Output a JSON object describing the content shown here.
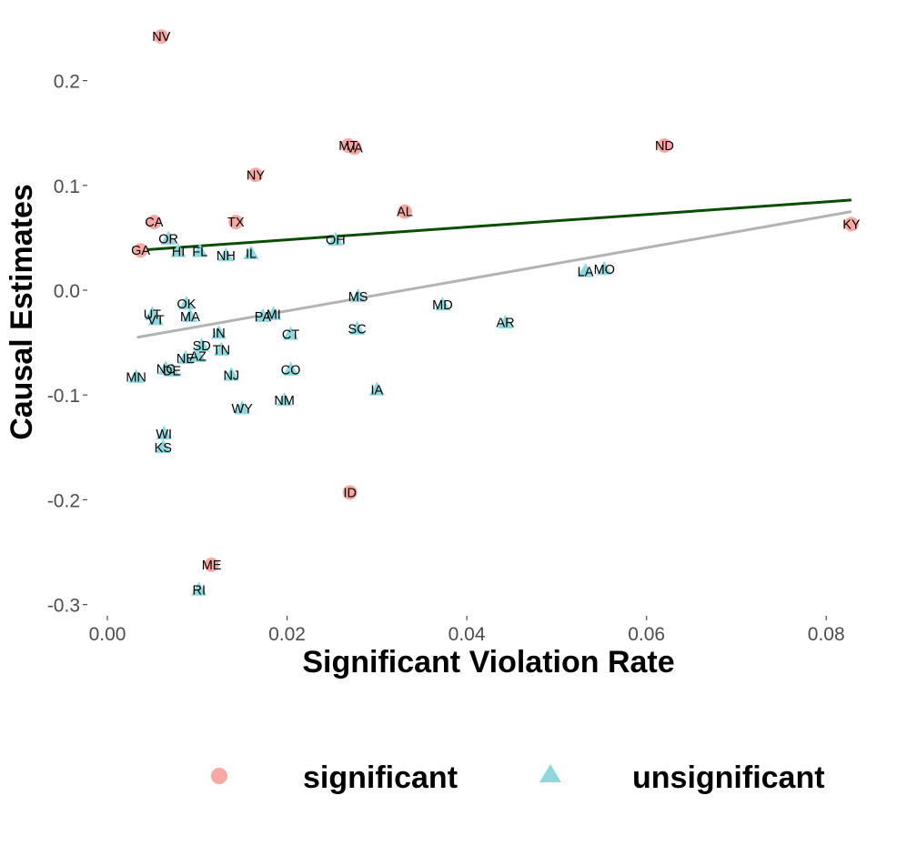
{
  "chart_data": {
    "type": "scatter",
    "xlabel": "Significant Violation Rate",
    "ylabel": "Causal Estimates",
    "xlim": [
      0.0,
      0.083
    ],
    "ylim": [
      -0.3,
      0.24
    ],
    "x_ticks": [
      0.0,
      0.02,
      0.04,
      0.06,
      0.08
    ],
    "x_tick_labels": [
      "0.00",
      "0.02",
      "0.04",
      "0.06",
      "0.08"
    ],
    "y_ticks": [
      -0.3,
      -0.2,
      -0.1,
      0.0,
      0.1,
      0.2
    ],
    "y_tick_labels": [
      "-0.3",
      "-0.2",
      "-0.1",
      "0.0",
      "0.1",
      "0.2"
    ],
    "grid": false,
    "legend_position": "bottom",
    "colors": {
      "significant": "#F8A9A3",
      "unsignificant": "#8ED8DE",
      "fit_significant": "#0A4D00",
      "fit_all": "#B3B3B3"
    },
    "legend": [
      {
        "key": "significant",
        "label": "significant",
        "shape": "circle"
      },
      {
        "key": "unsignificant",
        "label": "unsignificant",
        "shape": "triangle"
      }
    ],
    "fit_lines": [
      {
        "key": "fit_significant",
        "x": [
          0.0033,
          0.0828
        ],
        "y": [
          0.038,
          0.086
        ]
      },
      {
        "key": "fit_all",
        "x": [
          0.0033,
          0.0828
        ],
        "y": [
          -0.045,
          0.075
        ]
      }
    ],
    "series": [
      {
        "name": "significant",
        "points": [
          {
            "label": "NV",
            "x": 0.006,
            "y": 0.242
          },
          {
            "label": "MT",
            "x": 0.0268,
            "y": 0.138
          },
          {
            "label": "VA",
            "x": 0.0275,
            "y": 0.136
          },
          {
            "label": "ND",
            "x": 0.062,
            "y": 0.138
          },
          {
            "label": "NY",
            "x": 0.0165,
            "y": 0.11
          },
          {
            "label": "CA",
            "x": 0.0052,
            "y": 0.065
          },
          {
            "label": "TX",
            "x": 0.0143,
            "y": 0.065
          },
          {
            "label": "AL",
            "x": 0.0331,
            "y": 0.075
          },
          {
            "label": "GA",
            "x": 0.0037,
            "y": 0.038
          },
          {
            "label": "KY",
            "x": 0.0828,
            "y": 0.063
          },
          {
            "label": "ID",
            "x": 0.027,
            "y": -0.193
          },
          {
            "label": "ME",
            "x": 0.0116,
            "y": -0.262
          }
        ]
      },
      {
        "name": "unsignificant",
        "points": [
          {
            "label": "OR",
            "x": 0.0068,
            "y": 0.049
          },
          {
            "label": "HI",
            "x": 0.0079,
            "y": 0.037
          },
          {
            "label": "FL",
            "x": 0.0103,
            "y": 0.037
          },
          {
            "label": "NH",
            "x": 0.0132,
            "y": 0.033
          },
          {
            "label": "IL",
            "x": 0.016,
            "y": 0.035
          },
          {
            "label": "OH",
            "x": 0.0254,
            "y": 0.048
          },
          {
            "label": "LA",
            "x": 0.0532,
            "y": 0.018
          },
          {
            "label": "MO",
            "x": 0.0553,
            "y": 0.02
          },
          {
            "label": "MS",
            "x": 0.0279,
            "y": -0.006
          },
          {
            "label": "MD",
            "x": 0.0373,
            "y": -0.014
          },
          {
            "label": "AR",
            "x": 0.0443,
            "y": -0.031
          },
          {
            "label": "OK",
            "x": 0.0088,
            "y": -0.013
          },
          {
            "label": "UT",
            "x": 0.005,
            "y": -0.023
          },
          {
            "label": "VT",
            "x": 0.0054,
            "y": -0.028
          },
          {
            "label": "MA",
            "x": 0.0092,
            "y": -0.025
          },
          {
            "label": "PA",
            "x": 0.0173,
            "y": -0.025
          },
          {
            "label": "MI",
            "x": 0.0185,
            "y": -0.023
          },
          {
            "label": "IN",
            "x": 0.0124,
            "y": -0.041
          },
          {
            "label": "SC",
            "x": 0.0278,
            "y": -0.037
          },
          {
            "label": "CT",
            "x": 0.0204,
            "y": -0.042
          },
          {
            "label": "SD",
            "x": 0.0105,
            "y": -0.053
          },
          {
            "label": "TN",
            "x": 0.0127,
            "y": -0.057
          },
          {
            "label": "NE",
            "x": 0.0087,
            "y": -0.065
          },
          {
            "label": "AZ",
            "x": 0.0101,
            "y": -0.063
          },
          {
            "label": "NC",
            "x": 0.0065,
            "y": -0.075
          },
          {
            "label": "DE",
            "x": 0.0072,
            "y": -0.077
          },
          {
            "label": "MN",
            "x": 0.0032,
            "y": -0.083
          },
          {
            "label": "NJ",
            "x": 0.0138,
            "y": -0.081
          },
          {
            "label": "CO",
            "x": 0.0204,
            "y": -0.076
          },
          {
            "label": "IA",
            "x": 0.03,
            "y": -0.095
          },
          {
            "label": "NM",
            "x": 0.0197,
            "y": -0.105
          },
          {
            "label": "WY",
            "x": 0.015,
            "y": -0.113
          },
          {
            "label": "WI",
            "x": 0.0063,
            "y": -0.137
          },
          {
            "label": "KS",
            "x": 0.0062,
            "y": -0.15
          },
          {
            "label": "RI",
            "x": 0.0102,
            "y": -0.286
          }
        ]
      }
    ]
  }
}
